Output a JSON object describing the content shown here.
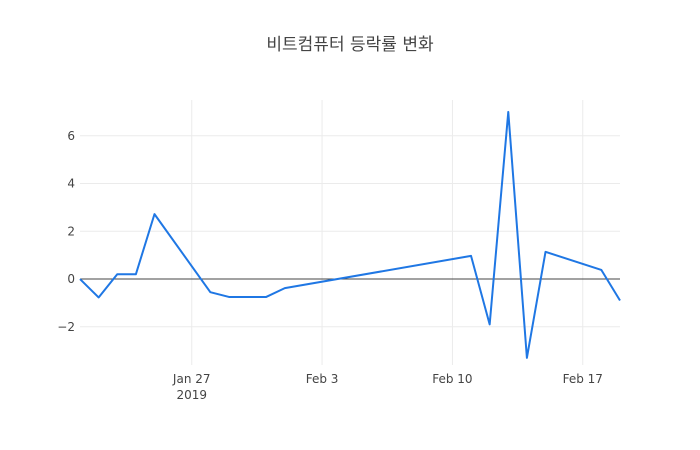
{
  "chart_data": {
    "type": "line",
    "title": "비트컴퓨터 등락률 변화",
    "xlabel": "",
    "ylabel": "",
    "x_ticks": [
      {
        "date": "2019-01-27",
        "label": "Jan 27",
        "sublabel": "2019"
      },
      {
        "date": "2019-02-03",
        "label": "Feb 3",
        "sublabel": ""
      },
      {
        "date": "2019-02-10",
        "label": "Feb 10",
        "sublabel": ""
      },
      {
        "date": "2019-02-17",
        "label": "Feb 17",
        "sublabel": ""
      }
    ],
    "y_ticks": [
      {
        "value": -2,
        "label": "−2"
      },
      {
        "value": 0,
        "label": "0"
      },
      {
        "value": 2,
        "label": "2"
      },
      {
        "value": 4,
        "label": "4"
      },
      {
        "value": 6,
        "label": "6"
      }
    ],
    "xlim": [
      "2019-01-21",
      "2019-02-18"
    ],
    "ylim": [
      -3.6,
      7.5
    ],
    "grid": true,
    "legend": "none",
    "series": [
      {
        "color": "#1f77e4",
        "points": [
          {
            "x": "2019-01-21",
            "y": 0.0
          },
          {
            "x": "2019-01-22",
            "y": -0.77
          },
          {
            "x": "2019-01-23",
            "y": 0.2
          },
          {
            "x": "2019-01-24",
            "y": 0.2
          },
          {
            "x": "2019-01-25",
            "y": 2.72
          },
          {
            "x": "2019-01-28",
            "y": -0.55
          },
          {
            "x": "2019-01-29",
            "y": -0.75
          },
          {
            "x": "2019-01-31",
            "y": -0.75
          },
          {
            "x": "2019-02-01",
            "y": -0.38
          },
          {
            "x": "2019-02-11",
            "y": 0.97
          },
          {
            "x": "2019-02-12",
            "y": -1.9
          },
          {
            "x": "2019-02-13",
            "y": 7.0
          },
          {
            "x": "2019-02-14",
            "y": -3.3
          },
          {
            "x": "2019-02-15",
            "y": 1.14
          },
          {
            "x": "2019-02-18",
            "y": 0.38
          },
          {
            "x": "2019-02-19",
            "y": -0.9
          }
        ]
      }
    ]
  }
}
